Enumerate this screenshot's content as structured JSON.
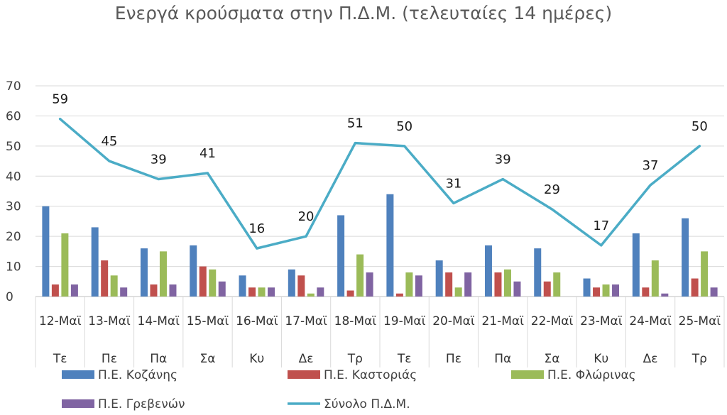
{
  "chart_data": {
    "type": "bar",
    "title": "Ενεργά κρούσματα στην Π.Δ.Μ. (τελευταίες 14 ημέρες)",
    "categories": [
      "12-Μαϊ",
      "13-Μαϊ",
      "14-Μαϊ",
      "15-Μαϊ",
      "16-Μαϊ",
      "17-Μαϊ",
      "18-Μαϊ",
      "19-Μαϊ",
      "20-Μαϊ",
      "21-Μαϊ",
      "22-Μαϊ",
      "23-Μαϊ",
      "24-Μαϊ",
      "25-Μαϊ"
    ],
    "days": [
      "Τε",
      "Πε",
      "Πα",
      "Σα",
      "Κυ",
      "Δε",
      "Τρ",
      "Τε",
      "Πε",
      "Πα",
      "Σα",
      "Κυ",
      "Δε",
      "Τρ"
    ],
    "ylim": [
      0,
      70
    ],
    "yticks": [
      0,
      10,
      20,
      30,
      40,
      50,
      60,
      70
    ],
    "grid": true,
    "legend_position": "bottom",
    "series": [
      {
        "name": "Π.Ε. Κοζάνης",
        "kind": "bar",
        "color": "#4f81bd",
        "values": [
          30,
          23,
          16,
          17,
          7,
          9,
          27,
          34,
          12,
          17,
          16,
          6,
          21,
          26
        ]
      },
      {
        "name": "Π.Ε. Καστοριάς",
        "kind": "bar",
        "color": "#c0504d",
        "values": [
          4,
          12,
          4,
          10,
          3,
          7,
          2,
          1,
          8,
          8,
          5,
          3,
          3,
          6
        ]
      },
      {
        "name": "Π.Ε. Φλώρινας",
        "kind": "bar",
        "color": "#9bbb59",
        "values": [
          21,
          7,
          15,
          9,
          3,
          1,
          14,
          8,
          3,
          9,
          8,
          4,
          12,
          15
        ]
      },
      {
        "name": "Π.Ε. Γρεβενών",
        "kind": "bar",
        "color": "#8064a2",
        "values": [
          4,
          3,
          4,
          5,
          3,
          3,
          8,
          7,
          8,
          5,
          0,
          4,
          1,
          3
        ]
      },
      {
        "name": "Σύνολο Π.Δ.Μ.",
        "kind": "line",
        "color": "#4bacc6",
        "values": [
          59,
          45,
          39,
          41,
          16,
          20,
          51,
          50,
          31,
          39,
          29,
          17,
          37,
          50
        ]
      }
    ]
  }
}
